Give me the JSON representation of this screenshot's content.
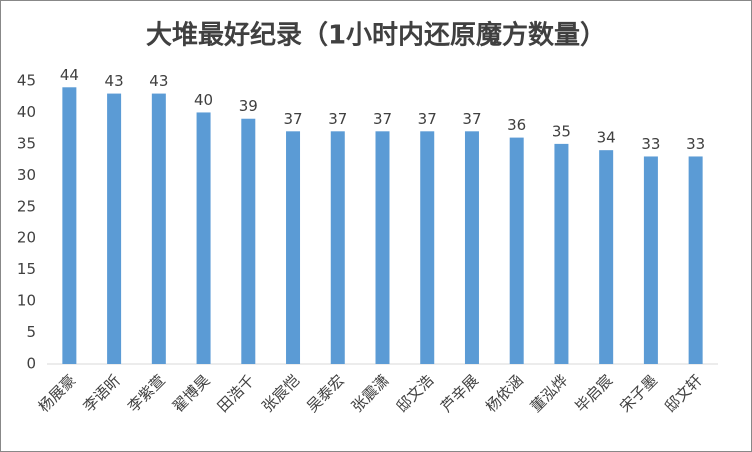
{
  "chart_data": {
    "type": "bar",
    "title": "大堆最好纪录（1小时内还原魔方数量）",
    "categories": [
      "杨展豪",
      "李语昕",
      "李紫萱",
      "翟博昊",
      "田浩千",
      "张宸恺",
      "吴泰宏",
      "张震潇",
      "邸文浩",
      "芦辛展",
      "杨依涵",
      "董泓烨",
      "毕启宸",
      "宋子墨",
      "邸文轩"
    ],
    "values": [
      44,
      43,
      43,
      40,
      39,
      37,
      37,
      37,
      37,
      37,
      36,
      35,
      34,
      33,
      33
    ],
    "color": "#5b9bd5",
    "ylim": [
      0,
      45
    ],
    "yticks": [
      0,
      5,
      10,
      15,
      20,
      25,
      30,
      35,
      40,
      45
    ],
    "grid": false
  }
}
